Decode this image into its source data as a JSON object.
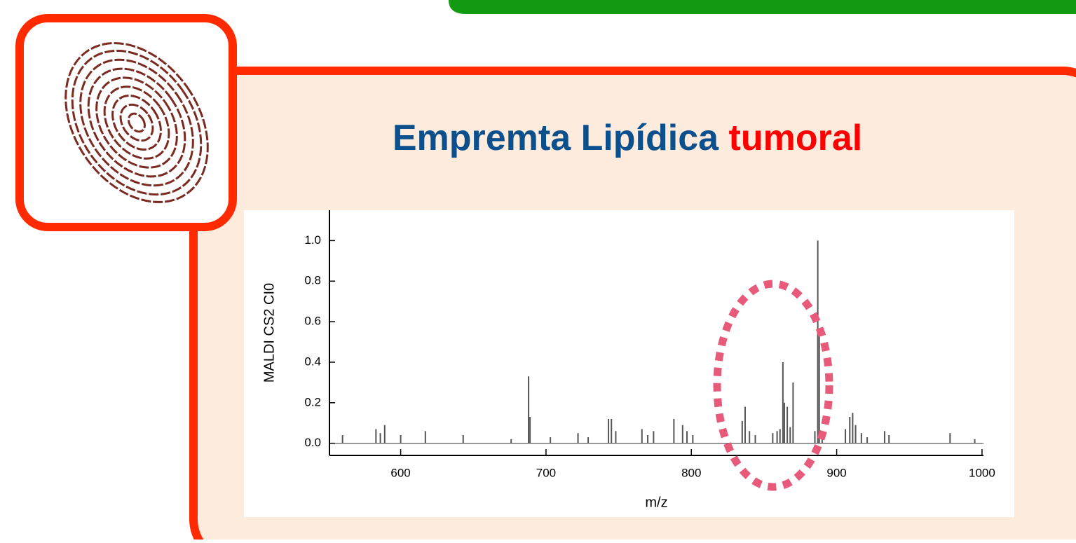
{
  "slide": {
    "title": "Empremta Lipídica",
    "title_highlight": "tumoral"
  },
  "chart_data": {
    "type": "bar",
    "xlabel": "m/z",
    "ylabel": "MALDI CS2 CI0",
    "color": "#555555",
    "x": [
      560,
      583,
      586,
      589,
      600,
      617,
      643,
      676,
      688,
      689,
      703,
      722,
      729,
      743,
      745,
      748,
      766,
      770,
      774,
      788,
      794,
      797,
      801,
      835,
      837,
      840,
      844,
      856,
      859,
      861,
      863,
      864,
      866,
      868,
      870,
      885,
      887,
      888,
      890,
      906,
      909,
      911,
      913,
      917,
      921,
      933,
      936,
      978,
      995
    ],
    "values": [
      0.04,
      0.07,
      0.05,
      0.09,
      0.04,
      0.06,
      0.04,
      0.02,
      0.33,
      0.13,
      0.03,
      0.05,
      0.03,
      0.12,
      0.12,
      0.06,
      0.07,
      0.04,
      0.06,
      0.12,
      0.09,
      0.06,
      0.04,
      0.11,
      0.18,
      0.06,
      0.04,
      0.05,
      0.06,
      0.07,
      0.4,
      0.2,
      0.18,
      0.08,
      0.3,
      0.06,
      1.0,
      0.55,
      0.06,
      0.07,
      0.13,
      0.15,
      0.09,
      0.05,
      0.03,
      0.06,
      0.04,
      0.05,
      0.02
    ],
    "xlim": [
      551,
      1001
    ],
    "ylim": [
      -0.06,
      1.15
    ],
    "xticks": [
      600,
      700,
      800,
      900,
      1000
    ],
    "yticks": [
      {
        "value": 0,
        "label": "0.0"
      },
      0.2,
      0.4,
      0.6,
      0.8,
      {
        "value": 1,
        "label": "1.0"
      }
    ]
  }
}
